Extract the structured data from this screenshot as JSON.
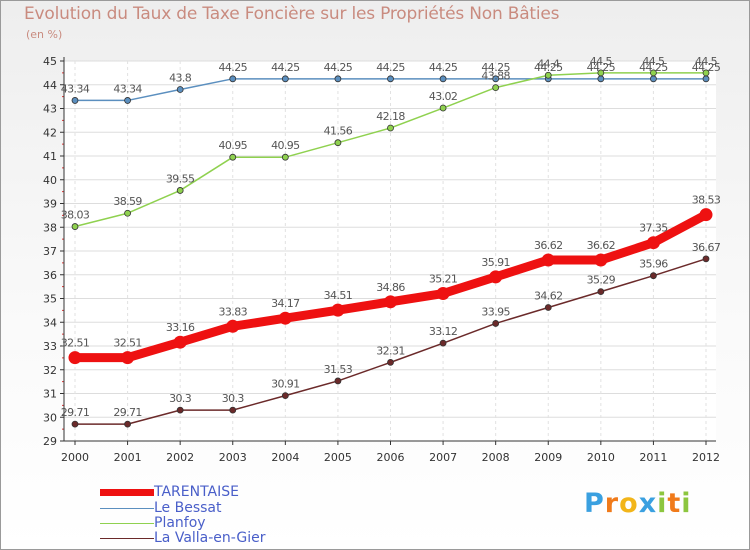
{
  "chart_data": {
    "type": "line",
    "title": "Evolution du Taux de Taxe Foncière sur les Propriétés Non Bâties",
    "ylabel": "(en %)",
    "xlabel": "",
    "categories": [
      "2000",
      "2001",
      "2002",
      "2003",
      "2004",
      "2005",
      "2006",
      "2007",
      "2008",
      "2009",
      "2010",
      "2011",
      "2012"
    ],
    "ylim": [
      29,
      45
    ],
    "yticks": [
      29,
      30,
      31,
      32,
      33,
      34,
      35,
      36,
      37,
      38,
      39,
      40,
      41,
      42,
      43,
      44,
      45
    ],
    "series": [
      {
        "name": "Le Bessat",
        "color": "#5b8fbf",
        "values": [
          43.34,
          43.34,
          43.8,
          44.25,
          44.25,
          44.25,
          44.25,
          44.25,
          44.25,
          44.25,
          44.25,
          44.25,
          44.25
        ],
        "labels": [
          "43.34",
          "43.34",
          "43.8",
          "44.25",
          "44.25",
          "44.25",
          "44.25",
          "44.25",
          "44.25",
          "44.25",
          "44.25",
          "44.25",
          "44.25"
        ]
      },
      {
        "name": "Planfoy",
        "color": "#8fd14f",
        "values": [
          38.03,
          38.59,
          39.55,
          40.95,
          40.95,
          41.56,
          42.18,
          43.02,
          43.88,
          44.4,
          44.5,
          44.5,
          44.5
        ],
        "labels": [
          "38.03",
          "38.59",
          "39.55",
          "40.95",
          "40.95",
          "41.56",
          "42.18",
          "43.02",
          "43.88",
          "44.4",
          "44.5",
          "44.5",
          "44.5"
        ]
      },
      {
        "name": "La Valla-en-Gier",
        "color": "#6b2a2a",
        "values": [
          29.71,
          29.71,
          30.3,
          30.3,
          30.91,
          31.53,
          32.31,
          33.12,
          33.95,
          34.62,
          35.29,
          35.96,
          36.67
        ],
        "labels": [
          "29.71",
          "29.71",
          "30.3",
          "30.3",
          "30.91",
          "31.53",
          "32.31",
          "33.12",
          "33.95",
          "34.62",
          "35.29",
          "35.96",
          "36.67"
        ]
      },
      {
        "name": "TARENTAISE",
        "color": "#ee1111",
        "thick": true,
        "values": [
          32.51,
          32.51,
          33.16,
          33.83,
          34.17,
          34.51,
          34.86,
          35.21,
          35.91,
          36.62,
          36.62,
          37.35,
          38.53
        ],
        "labels": [
          "32.51",
          "32.51",
          "33.16",
          "33.83",
          "34.17",
          "34.51",
          "34.86",
          "35.21",
          "35.91",
          "36.62",
          "36.62",
          "37.35",
          "38.53"
        ]
      }
    ],
    "legend": [
      "TARENTAISE",
      "Le Bessat",
      "Planfoy",
      "La Valla-en-Gier"
    ]
  },
  "brand": {
    "text": "Proxiti",
    "letters": [
      "P",
      "r",
      "o",
      "x",
      "i",
      "t",
      "i"
    ],
    "colors": [
      "#3aa0e0",
      "#f07a1a",
      "#f2b51a",
      "#3aa0e0",
      "#8cc63f",
      "#f07a1a",
      "#8cc63f"
    ]
  }
}
